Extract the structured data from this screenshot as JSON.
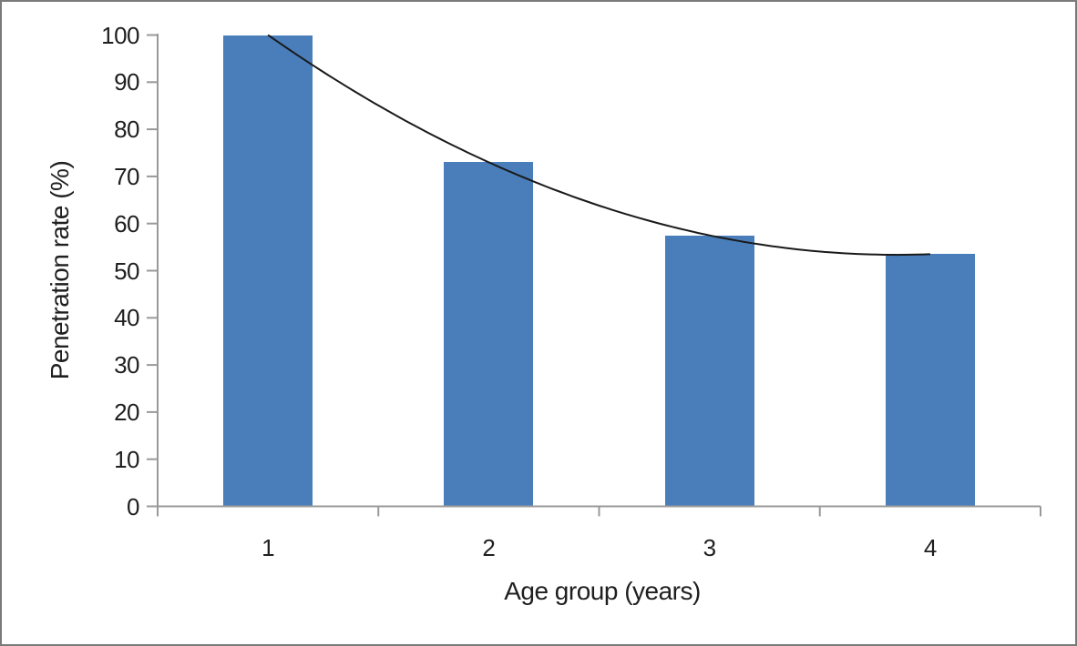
{
  "chart_data": {
    "type": "bar",
    "title": "",
    "categories": [
      "1",
      "2",
      "3",
      "4"
    ],
    "values": [
      100,
      73,
      57.5,
      53.5
    ],
    "xlabel": "Age group (years)",
    "ylabel": "Penetration rate (%)",
    "ylim": [
      0,
      100
    ],
    "ytick_step": 10,
    "ytick_labels": [
      "0",
      "10",
      "20",
      "30",
      "40",
      "50",
      "60",
      "70",
      "80",
      "90",
      "100"
    ],
    "grid": "off",
    "legend": "none",
    "colors": {
      "bar": "#4A7EBB",
      "axis": "#999999",
      "text": "#1f1f1f",
      "trendline": "#1a1a1a",
      "frame_border": "#7a7a7a",
      "background": "#ffffff"
    },
    "trendline": {
      "type": "polynomial",
      "order": 2,
      "coefficients": {
        "a": 5.75,
        "b": -44.25,
        "c": 138.5
      },
      "x_range": [
        1,
        4
      ]
    }
  }
}
